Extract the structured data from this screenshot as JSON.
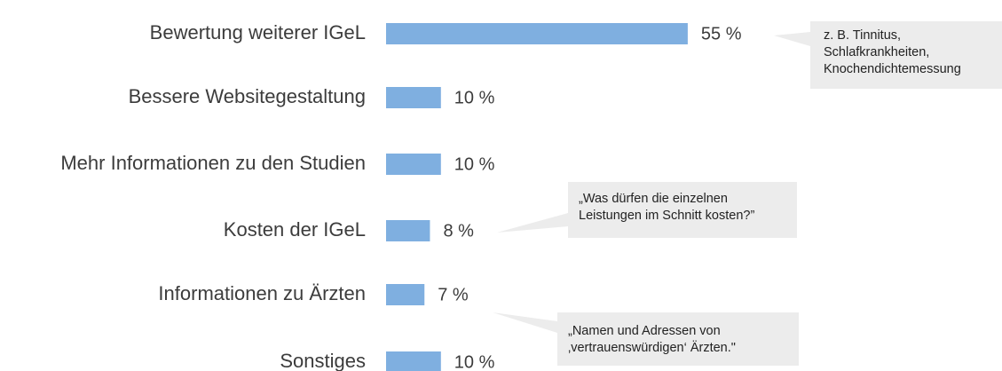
{
  "chart_data": {
    "type": "bar",
    "orientation": "horizontal",
    "categories": [
      "Bewertung weiterer IGeL",
      "Bessere Websitegestaltung",
      "Mehr Informationen zu den Studien",
      "Kosten der IGeL",
      "Informationen zu Ärzten",
      "Sonstiges"
    ],
    "values": [
      55,
      10,
      10,
      8,
      7,
      10
    ],
    "value_labels": [
      "55 %",
      "10 %",
      "10 %",
      "8 %",
      "7 %",
      "10 %"
    ],
    "color": "#7fafe0",
    "annotations": [
      {
        "lines": [
          "z. B. Tinnitus,",
          "Schlafkrankheiten,",
          "Knochendichtemessung"
        ]
      },
      {
        "lines": [
          "„Was dürfen die einzelnen",
          "Leistungen im Schnitt kosten?”"
        ]
      },
      {
        "lines": [
          "„Namen und Adressen von",
          "‚vertrauenswürdigen‘ Ärzten.\""
        ]
      }
    ]
  }
}
